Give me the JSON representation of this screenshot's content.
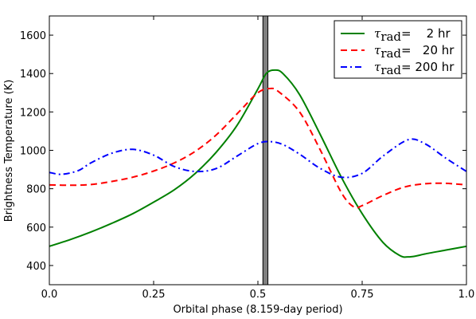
{
  "chart_data": {
    "type": "line",
    "xlabel": "Orbital phase (8.159-day period)",
    "ylabel": "Brightness Temperature  (K)",
    "xlim": [
      0.0,
      1.0
    ],
    "ylim": [
      300,
      1700
    ],
    "xticks": [
      0.0,
      0.25,
      0.5,
      0.75,
      1.0
    ],
    "xtick_labels": [
      "0.0",
      "0.25",
      "0.5",
      "0.75",
      "1.0"
    ],
    "yticks": [
      400,
      600,
      800,
      1000,
      1200,
      1400,
      1600
    ],
    "ytick_labels": [
      "400",
      "600",
      "800",
      "1000",
      "1200",
      "1400",
      "1600"
    ],
    "grid": false,
    "legend_position": "top-right",
    "eclipse_band": {
      "x_start": 0.512,
      "x_end": 0.524,
      "color": "#808080"
    },
    "series": [
      {
        "legend_symbol": "τ",
        "legend_subscript": "rad",
        "legend_value": "=    2 hr",
        "color": "#008000",
        "style": "solid",
        "x": [
          0.0,
          0.05,
          0.1,
          0.15,
          0.2,
          0.25,
          0.3,
          0.35,
          0.4,
          0.45,
          0.5,
          0.52,
          0.54,
          0.56,
          0.6,
          0.65,
          0.7,
          0.75,
          0.8,
          0.84,
          0.86,
          0.88,
          0.9,
          0.95,
          1.0
        ],
        "y": [
          500,
          535,
          575,
          620,
          670,
          730,
          795,
          880,
          990,
          1130,
          1320,
          1400,
          1418,
          1400,
          1290,
          1080,
          860,
          670,
          520,
          452,
          445,
          450,
          460,
          480,
          500
        ]
      },
      {
        "legend_symbol": "τ",
        "legend_subscript": "rad",
        "legend_value": "=   20 hr",
        "color": "#ff0000",
        "style": "dashed",
        "x": [
          0.0,
          0.05,
          0.1,
          0.15,
          0.2,
          0.25,
          0.3,
          0.35,
          0.4,
          0.45,
          0.5,
          0.53,
          0.55,
          0.6,
          0.65,
          0.7,
          0.73,
          0.75,
          0.8,
          0.85,
          0.9,
          0.95,
          1.0
        ],
        "y": [
          820,
          818,
          822,
          838,
          860,
          892,
          935,
          995,
          1080,
          1190,
          1300,
          1322,
          1305,
          1200,
          1000,
          780,
          705,
          712,
          765,
          808,
          826,
          828,
          820
        ]
      },
      {
        "legend_symbol": "τ",
        "legend_subscript": "rad",
        "legend_value": "= 200 hr",
        "color": "#0000ff",
        "style": "dashdot",
        "x": [
          0.0,
          0.03,
          0.07,
          0.1,
          0.15,
          0.2,
          0.25,
          0.3,
          0.35,
          0.4,
          0.45,
          0.5,
          0.53,
          0.56,
          0.6,
          0.65,
          0.7,
          0.75,
          0.8,
          0.86,
          0.9,
          0.95,
          1.0
        ],
        "y": [
          885,
          875,
          895,
          935,
          985,
          1005,
          975,
          915,
          890,
          905,
          970,
          1035,
          1045,
          1030,
          980,
          905,
          860,
          880,
          970,
          1055,
          1035,
          960,
          890
        ]
      }
    ]
  }
}
